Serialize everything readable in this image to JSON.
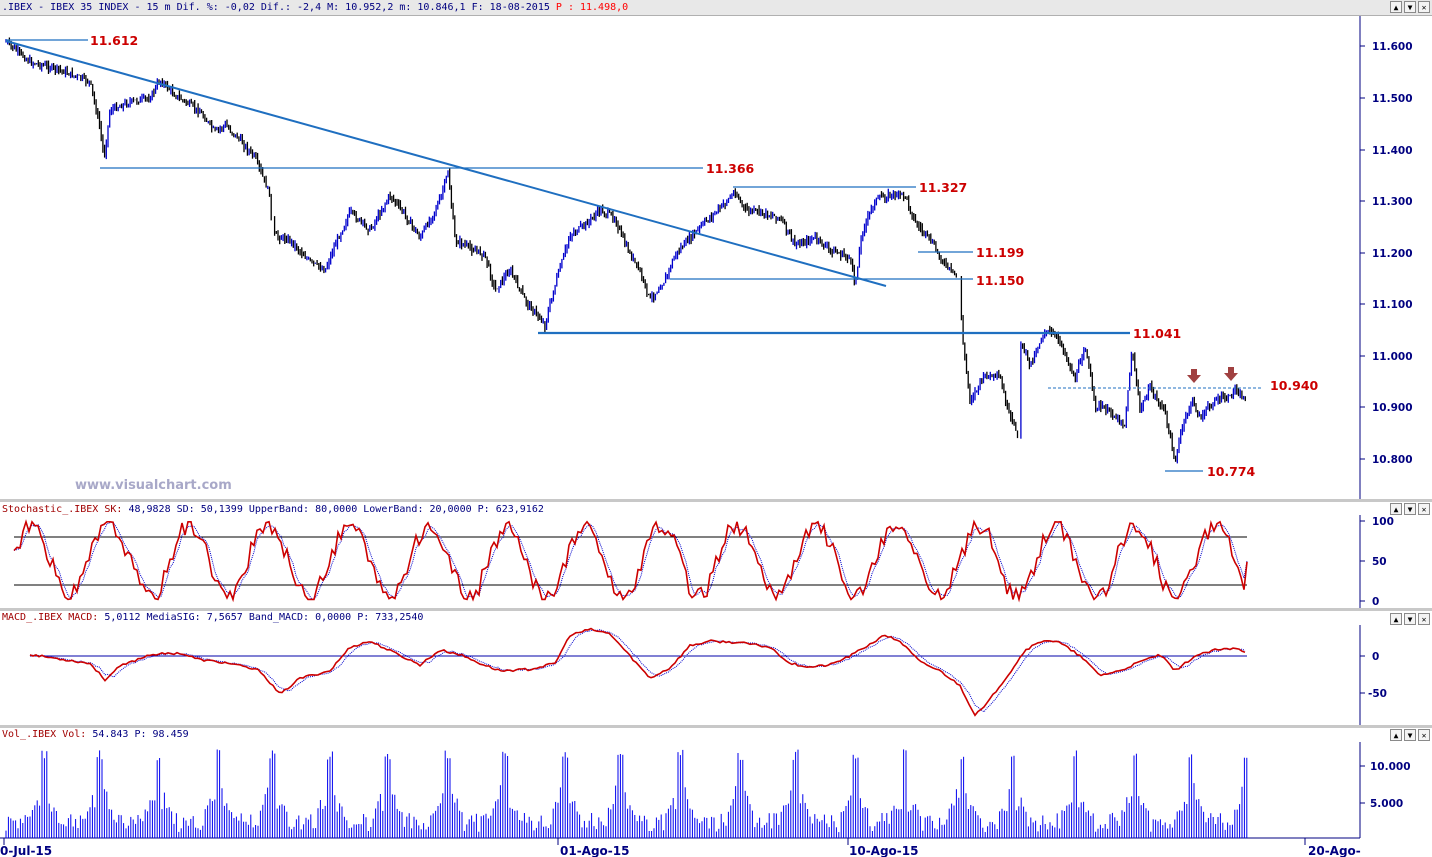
{
  "header": {
    "title_text": ".IBEX - IBEX 35 INDEX -  15 m Dif. %: -0,02 Dif.: -2,4 M: 10.952,2 m: 10.846,1 F: 18-08-2015",
    "p_text": "P : 11.498,0",
    "buttons": [
      "▲",
      "▼",
      "✕"
    ]
  },
  "watermark": "www.visualchart.com",
  "price_panel": {
    "y_ticks": [
      "11.600",
      "11.500",
      "11.400",
      "11.300",
      "11.200",
      "11.100",
      "11.000",
      "10.900",
      "10.800"
    ],
    "levels": [
      "11.612",
      "11.366",
      "11.327",
      "11.199",
      "11.150",
      "11.041",
      "10.940",
      "10.774"
    ]
  },
  "stoch_panel": {
    "header_name": "Stochastic_.IBEX SK:",
    "header_values": "48,9828 SD: 50,1399 UpperBand: 80,0000 LowerBand: 20,0000 P: 623,9162",
    "y_ticks": [
      "100",
      "50",
      "0"
    ]
  },
  "macd_panel": {
    "header_name": "MACD_.IBEX MACD:",
    "header_values": "5,0112 MediaSIG: 7,5657 Band_MACD: 0,0000 P: 733,2540",
    "y_ticks": [
      "0",
      "-50"
    ]
  },
  "vol_panel": {
    "header_name": "Vol_.IBEX Vol:",
    "header_values": "54.843 P: 98.459",
    "y_ticks": [
      "10.000",
      "5.000"
    ]
  },
  "x_axis": [
    "0-Jul-15",
    "01-Ago-15",
    "10-Ago-15",
    "20-Ago-"
  ],
  "colors": {
    "up": "#0000cc",
    "down": "#000000",
    "trend": "#1f6fc0",
    "stoch": "#cc0000",
    "macd": "#cc0000",
    "signal": "#0000cc",
    "vol": "#0000ee",
    "axis": "#000080"
  },
  "chart_data": [
    {
      "type": "line",
      "title": "IBEX 35 INDEX 15 m",
      "x": [
        "0-Jul-15",
        "01-Ago-15",
        "10-Ago-15",
        "20-Ago-"
      ],
      "ylim": [
        10740,
        11650
      ],
      "annotated_levels": [
        11612,
        11366,
        11327,
        11199,
        11150,
        11041,
        10940,
        10774
      ],
      "trendline": [
        [
          11612,
          "0-Jul-15"
        ],
        [
          11135,
          "10-Ago-15"
        ]
      ]
    },
    {
      "type": "line",
      "title": "Stochastic_.IBEX",
      "series": [
        {
          "name": "SK",
          "last": 48.9828
        },
        {
          "name": "SD",
          "last": 50.1399
        }
      ],
      "bands": [
        80,
        20
      ],
      "ylim": [
        0,
        100
      ]
    },
    {
      "type": "line",
      "title": "MACD_.IBEX",
      "series": [
        {
          "name": "MACD",
          "last": 5.0112
        },
        {
          "name": "MediaSIG",
          "last": 7.5657
        }
      ],
      "band": 0
    },
    {
      "type": "bar",
      "title": "Vol_.IBEX",
      "series": [
        {
          "name": "Vol",
          "last": 54843
        }
      ]
    }
  ]
}
